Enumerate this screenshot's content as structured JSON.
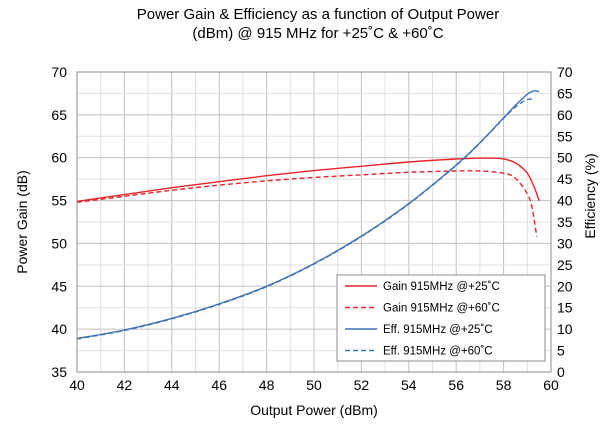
{
  "chart_data": {
    "type": "line",
    "title": "Power Gain & Efficiency as a function of Output Power",
    "subtitle": "(dBm)  @ 915 MHz for +25˚C & +60˚C",
    "xlabel": "Output Power (dBm)",
    "ylabel": "Power Gain (dB)",
    "y2label": "Efficiency (%)",
    "xlim": [
      40,
      60
    ],
    "ylim": [
      35,
      70
    ],
    "y2lim": [
      0,
      70
    ],
    "x_ticks": [
      40,
      42,
      44,
      46,
      48,
      50,
      52,
      54,
      56,
      58,
      60
    ],
    "y_ticks": [
      35,
      40,
      45,
      50,
      55,
      60,
      65,
      70
    ],
    "y2_ticks": [
      0,
      5,
      10,
      15,
      20,
      25,
      30,
      35,
      40,
      45,
      50,
      55,
      60,
      65,
      70
    ],
    "grid": true,
    "legend_position": "bottom-right",
    "colors": {
      "gain": "#e8242b",
      "efficiency": "#3f72b5",
      "grid": "#c0c0c0"
    },
    "series": [
      {
        "name": "Gain 915MHz @+25˚C",
        "axis": "left",
        "style": "solid",
        "x": [
          40,
          42,
          44,
          46,
          48,
          50,
          52,
          54,
          56,
          57,
          57.5,
          58,
          58.5,
          59,
          59.3,
          59.5
        ],
        "values": [
          54.9,
          55.7,
          56.5,
          57.2,
          57.9,
          58.5,
          59.0,
          59.5,
          59.85,
          59.95,
          59.95,
          59.85,
          59.4,
          58.2,
          56.5,
          55.0
        ]
      },
      {
        "name": "Gain 915MHz @+60˚C",
        "axis": "left",
        "style": "dashed",
        "x": [
          40,
          42,
          44,
          46,
          48,
          50,
          52,
          54,
          56,
          57,
          58,
          58.5,
          59,
          59.2,
          59.4
        ],
        "values": [
          54.8,
          55.5,
          56.2,
          56.8,
          57.3,
          57.7,
          58.0,
          58.3,
          58.45,
          58.45,
          58.2,
          57.6,
          55.8,
          54.2,
          50.8
        ]
      },
      {
        "name": "Eff. 915MHz @+25˚C",
        "axis": "right",
        "style": "solid",
        "x": [
          40,
          42,
          44,
          46,
          48,
          50,
          52,
          54,
          56,
          57,
          58,
          58.5,
          59,
          59.3,
          59.5
        ],
        "values": [
          7.8,
          9.8,
          12.5,
          15.9,
          20.0,
          25.3,
          31.7,
          39.3,
          48.3,
          53.5,
          59.3,
          62.2,
          64.8,
          65.6,
          65.4
        ]
      },
      {
        "name": "Eff. 915MHz @+60˚C",
        "axis": "right",
        "style": "dashed",
        "x": [
          40,
          42,
          44,
          46,
          48,
          50,
          52,
          54,
          56,
          57,
          58,
          58.5,
          59,
          59.3
        ],
        "values": [
          7.7,
          9.7,
          12.4,
          15.8,
          19.9,
          25.2,
          31.6,
          39.2,
          48.2,
          53.4,
          59.2,
          61.8,
          63.6,
          63.4
        ]
      }
    ]
  }
}
